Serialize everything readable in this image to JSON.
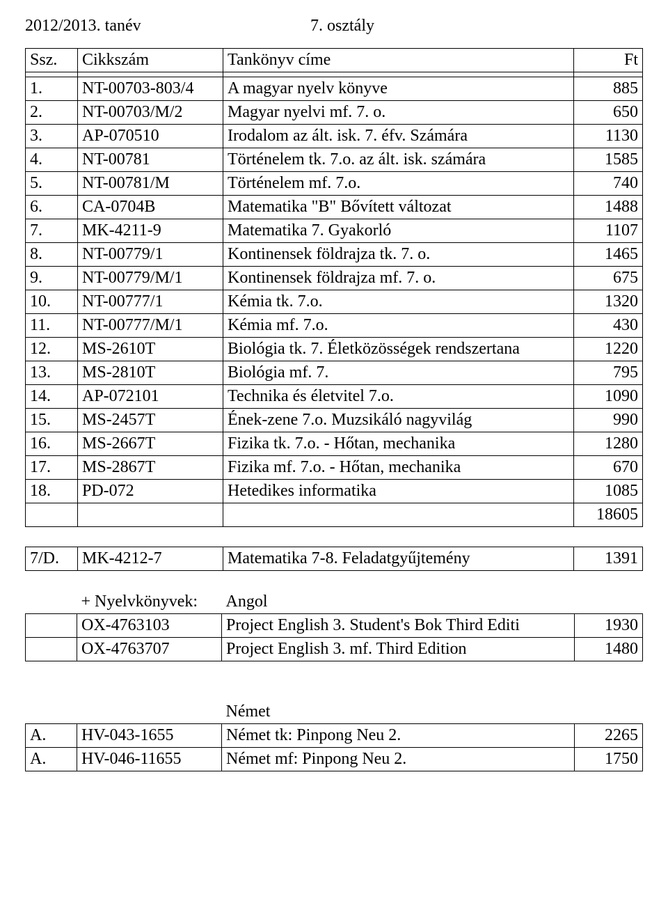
{
  "header": {
    "year": "2012/2013. tanév",
    "grade": "7. osztály"
  },
  "columns": [
    "Ssz.",
    "Cikkszám",
    "Tankönyv címe",
    "Ft"
  ],
  "rows": [
    [
      "1",
      "NT-00703-803/4",
      "A magyar nyelv könyve",
      "885"
    ],
    [
      "2",
      "NT-00703/M/2",
      "Magyar nyelvi mf. 7. o.",
      "650"
    ],
    [
      "3",
      "AP-070510",
      "Irodalom  az ált. isk. 7. éfv. Számára",
      "1130"
    ],
    [
      "4",
      "NT-00781",
      "Történelem tk. 7.o. az ált. isk. számára",
      "1585"
    ],
    [
      "5",
      "NT-00781/M",
      "Történelem mf. 7.o.",
      "740"
    ],
    [
      "6",
      "CA-0704B",
      "Matematika \"B\" Bővített változat",
      "1488"
    ],
    [
      "7",
      "MK-4211-9",
      "Matematika 7. Gyakorló",
      "1107"
    ],
    [
      "8",
      "NT-00779/1",
      "Kontinensek földrajza tk. 7. o.",
      "1465"
    ],
    [
      "9",
      "NT-00779/M/1",
      "Kontinensek földrajza mf. 7. o.",
      "675"
    ],
    [
      "10",
      "NT-00777/1",
      "Kémia tk. 7.o.",
      "1320"
    ],
    [
      "11",
      "NT-00777/M/1",
      "Kémia mf. 7.o.",
      "430"
    ],
    [
      "12",
      "MS-2610T",
      "Biológia tk. 7. Életközösségek rendszertana",
      "1220"
    ],
    [
      "13",
      "MS-2810T",
      "Biológia mf. 7.",
      "795"
    ],
    [
      "14",
      "AP-072101",
      "Technika és életvitel 7.o.",
      "1090"
    ],
    [
      "15",
      "MS-2457T",
      "Ének-zene 7.o. Muzsikáló nagyvilág",
      "990"
    ],
    [
      "16",
      "MS-2667T",
      "Fizika tk. 7.o. - Hőtan, mechanika",
      "1280"
    ],
    [
      "17",
      "MS-2867T",
      "Fizika mf. 7.o. - Hőtan, mechanika",
      "670"
    ],
    [
      "18",
      "PD-072",
      "Hetedikes informatika",
      "1085"
    ]
  ],
  "total": "18605",
  "extra_row": [
    "7/D.",
    "MK-4212-7",
    "Matematika 7-8. Feladatgyűjtemény",
    "1391"
  ],
  "lang_section": {
    "label": "+ Nyelvkönyvek:",
    "angol": {
      "title": "Angol",
      "rows": [
        [
          "OX-4763103",
          "Project English 3. Student's Bok Third Editi",
          "1930"
        ],
        [
          "OX-4763707",
          "Project English 3. mf. Third Edition",
          "1480"
        ]
      ]
    },
    "nemet": {
      "title": "Német",
      "rows": [
        [
          "A.",
          "HV-043-1655",
          "Német tk: Pinpong Neu 2.",
          "2265"
        ],
        [
          "A.",
          "HV-046-11655",
          "Német mf: Pinpong Neu 2.",
          "1750"
        ]
      ]
    }
  }
}
